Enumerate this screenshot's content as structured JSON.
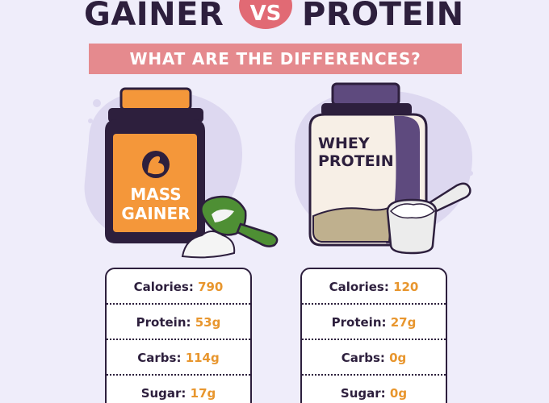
{
  "title": {
    "left": "GAINER",
    "vs": "VS",
    "right": "PROTEIN"
  },
  "banner": "WHAT ARE THE DIFFERENCES?",
  "products": [
    {
      "label_lines": [
        "MASS",
        "GAINER"
      ],
      "icon": "flexed-arm-icon",
      "jar_color": "#f4973a",
      "scoop_color": "#4e8f34",
      "nutrition": [
        {
          "name": "Calories:",
          "value": "790"
        },
        {
          "name": "Protein:",
          "value": "53g"
        },
        {
          "name": "Carbs:",
          "value": "114g"
        },
        {
          "name": "Sugar:",
          "value": "17g"
        }
      ]
    },
    {
      "label_lines": [
        "WHEY",
        "PROTEIN"
      ],
      "jar_color": "#f7efe6",
      "lid_color": "#5e4a7e",
      "scoop_color": "#ececec",
      "nutrition": [
        {
          "name": "Calories:",
          "value": "120"
        },
        {
          "name": "Protein:",
          "value": "27g"
        },
        {
          "name": "Carbs:",
          "value": "0g"
        },
        {
          "name": "Sugar:",
          "value": "0g"
        }
      ]
    }
  ],
  "colors": {
    "background": "#efedfa",
    "dark": "#2d1f3d",
    "accent": "#e58a8e",
    "value": "#e8962e"
  }
}
